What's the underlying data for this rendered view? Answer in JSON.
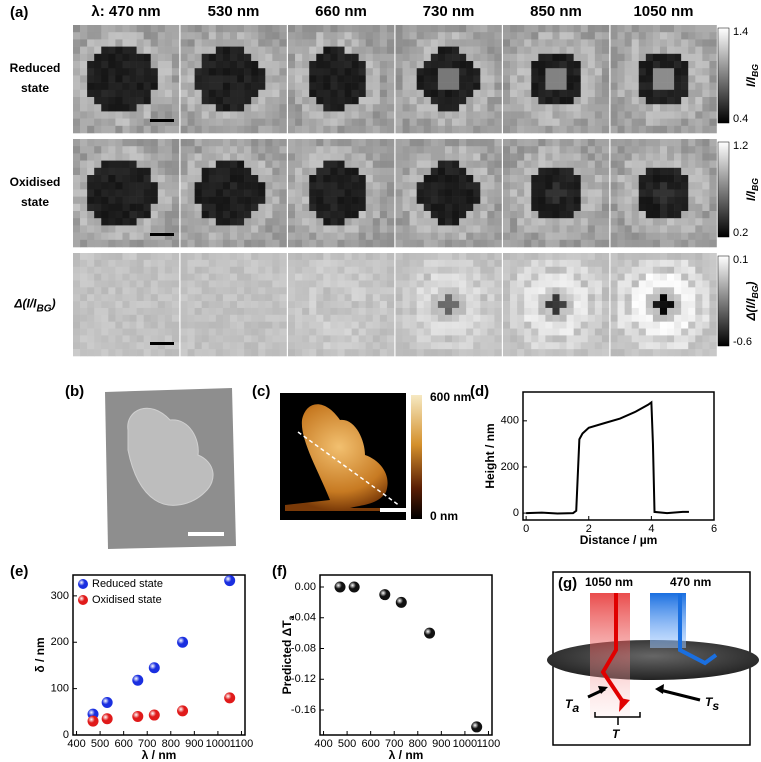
{
  "panel_a": {
    "label": "(a)",
    "columns": [
      "λ: 470 nm",
      "530 nm",
      "660 nm",
      "730 nm",
      "850 nm",
      "1050 nm"
    ],
    "rows": [
      {
        "label": [
          "Reduced",
          "state"
        ],
        "colorbar": {
          "ticks": [
            1.4,
            0.4
          ],
          "label": {
            "text": "I/I",
            "sub": "BG"
          }
        }
      },
      {
        "label": [
          "Oxidised",
          "state"
        ],
        "colorbar": {
          "ticks": [
            1.2,
            0.2
          ],
          "label": {
            "text": "I/I",
            "sub": "BG"
          }
        }
      },
      {
        "label": [
          {
            "text": "Δ(I/I",
            "sub": "BG",
            "after": ")"
          }
        ],
        "colorbar": {
          "ticks": [
            0.1,
            -0.6
          ],
          "label": {
            "text": "Δ(I/I",
            "sub": "BG",
            "after": ")"
          }
        }
      }
    ]
  },
  "panel_b": {
    "label": "(b)"
  },
  "panel_c": {
    "label": "(c)",
    "colorbar": [
      "600 nm",
      "0 nm"
    ]
  },
  "panel_g": {
    "label": "(g)",
    "beams": [
      "1050 nm",
      "470 nm"
    ],
    "transmissions": [
      {
        "text": "T",
        "sub": "a"
      },
      {
        "text": "T",
        "sub": "s"
      },
      {
        "text": "T"
      }
    ]
  },
  "chart_data": [
    {
      "type": "line",
      "label": "(d)",
      "xlabel": "Distance / µm",
      "ylabel": "Height / nm",
      "x": [
        0,
        0.5,
        1,
        1.5,
        1.6,
        1.7,
        1.8,
        2,
        2.5,
        3,
        3.5,
        3.9,
        4,
        4.05,
        4.1,
        4.5,
        5,
        5.2
      ],
      "series": [
        {
          "color": "#000000",
          "values": [
            0,
            2,
            -2,
            0,
            10,
            320,
            345,
            370,
            390,
            410,
            440,
            470,
            480,
            300,
            5,
            0,
            5,
            5
          ]
        }
      ],
      "xlim": [
        -0.1,
        6
      ],
      "xticks": [
        0,
        2,
        4,
        6
      ],
      "ylim": [
        -30,
        525
      ],
      "yticks": [
        0,
        200,
        400
      ]
    },
    {
      "type": "scatter",
      "label": "(e)",
      "xlabel": "λ / nm",
      "ylabel": "δ / nm",
      "legend": "upper left",
      "x": [
        470,
        530,
        660,
        730,
        850,
        1050
      ],
      "series": [
        {
          "name": "Reduced state",
          "color": "#1a2fe0",
          "values": [
            45,
            70,
            118,
            145,
            200,
            333
          ]
        },
        {
          "name": "Oxidised state",
          "color": "#e01a1a",
          "values": [
            30,
            35,
            40,
            43,
            52,
            80
          ]
        }
      ],
      "xlim": [
        385,
        1115
      ],
      "xticks": [
        400,
        500,
        600,
        700,
        800,
        900,
        1000,
        1100
      ],
      "ylim": [
        0,
        345
      ],
      "yticks": [
        0,
        100,
        200,
        300
      ]
    },
    {
      "type": "scatter",
      "label": "(f)",
      "xlabel": "λ / nm",
      "ylabel": {
        "text": "Predicted ΔT",
        "sub": "a"
      },
      "x": [
        470,
        530,
        660,
        730,
        850,
        1050
      ],
      "series": [
        {
          "color": "#111111",
          "values": [
            0,
            0,
            -0.01,
            -0.02,
            -0.06,
            -0.182
          ]
        }
      ],
      "xlim": [
        385,
        1115
      ],
      "xticks": [
        400,
        500,
        600,
        700,
        800,
        900,
        1000,
        1100
      ],
      "ylim": [
        -0.1925,
        0.0156
      ],
      "yticks": [
        {
          "value": 0,
          "label": "0.00"
        },
        -0.04,
        -0.08,
        -0.12,
        -0.16
      ]
    }
  ]
}
